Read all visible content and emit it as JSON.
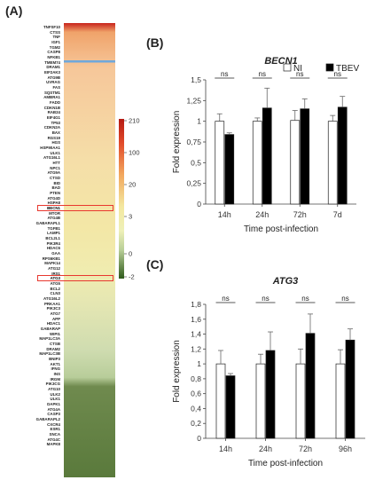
{
  "panels": {
    "a": "(A)",
    "b": "(B)",
    "c": "(C)"
  },
  "colors": {
    "ni": "#ffffff",
    "tbev": "#000000",
    "highlight_box": "#e8382f",
    "highlight_line": "#6fa8dc"
  },
  "heatmap": {
    "genes": [
      "TNFSF10",
      "CTSS",
      "TNF",
      "IGF1",
      "TGM2",
      "CASP8",
      "NFKB1",
      "TMEM74",
      "DRAM1",
      "EIF2AK3",
      "ATG9B",
      "UVRAG",
      "FAS",
      "SQSTM1",
      "AMBRA1",
      "FADD",
      "CDKN1B",
      "RAB24",
      "EIF4G1",
      "TP53",
      "CDKN2A",
      "BAX",
      "RGS19",
      "HGS",
      "HSP90AA1",
      "ULK1",
      "ATG16L1",
      "HTT",
      "NPC1",
      "ATG9A",
      "CTSD",
      "BID",
      "BAD",
      "PTEN",
      "ATG4D",
      "HSPA8",
      "BECN1",
      "MTOR",
      "ATG4B",
      "GABARAPL1",
      "TGFB1",
      "LAMP1",
      "BCL2L1",
      "PIK3R4",
      "HDAC6",
      "GAA",
      "RPS6KB1",
      "MAPK14",
      "ATG12",
      "IRS1",
      "ATG3",
      "ATG5",
      "BCL2",
      "CLN3",
      "ATG16L2",
      "PRKAA1",
      "PIK3C3",
      "ATG7",
      "APP",
      "HDAC1",
      "GABARAP",
      "WIPI1",
      "MAP1LC3A",
      "CTSB",
      "DRAM2",
      "MAP1LC3B",
      "BNIP3",
      "AKT1",
      "IFNG",
      "INS",
      "IRGM",
      "PIK3CG",
      "ATG10",
      "ULK2",
      "ULK1",
      "DAPK1",
      "ATG4A",
      "CASP3",
      "GABARAPL2",
      "CXCR4",
      "ESR1",
      "SNCA",
      "ATG4C",
      "MAPK8"
    ],
    "highlighted": [
      "BECN1",
      "ATG3"
    ],
    "color_scale": {
      "ticks": [
        "210",
        "100",
        "20",
        "3",
        "0",
        "-2"
      ]
    }
  },
  "chart_data": [
    {
      "type": "bar",
      "title": "BECN1",
      "categories": [
        "14h",
        "24h",
        "72h",
        "7d"
      ],
      "xlabel": "Time post-infection",
      "ylabel": "Fold expression",
      "ylim": [
        0,
        1.5
      ],
      "yticks": [
        "0",
        "0,25",
        "0,5",
        "0,75",
        "1",
        "1,25",
        "1,5"
      ],
      "grid": false,
      "legend": "top-right",
      "significance": [
        "ns",
        "ns",
        "ns",
        "ns"
      ],
      "series": [
        {
          "name": "NI",
          "values": [
            1.0,
            1.0,
            1.01,
            1.0
          ],
          "errors": [
            0.09,
            0.04,
            0.12,
            0.07
          ]
        },
        {
          "name": "TBEV",
          "values": [
            0.84,
            1.16,
            1.15,
            1.17
          ],
          "errors": [
            0.02,
            0.24,
            0.12,
            0.13
          ]
        }
      ]
    },
    {
      "type": "bar",
      "title": "ATG3",
      "categories": [
        "14h",
        "24h",
        "72h",
        "96h"
      ],
      "xlabel": "Time post-infection",
      "ylabel": "Fold expression",
      "ylim": [
        0,
        1.8
      ],
      "yticks": [
        "0",
        "0,2",
        "0,4",
        "0,6",
        "0,8",
        "1",
        "1,2",
        "1,4",
        "1,6",
        "1,8"
      ],
      "grid": false,
      "significance": [
        "ns",
        "ns",
        "ns",
        "ns"
      ],
      "series": [
        {
          "name": "NI",
          "values": [
            1.0,
            1.0,
            1.0,
            1.0
          ],
          "errors": [
            0.18,
            0.13,
            0.2,
            0.19
          ]
        },
        {
          "name": "TBEV",
          "values": [
            0.84,
            1.18,
            1.41,
            1.32
          ],
          "errors": [
            0.03,
            0.25,
            0.26,
            0.15
          ]
        }
      ]
    }
  ]
}
